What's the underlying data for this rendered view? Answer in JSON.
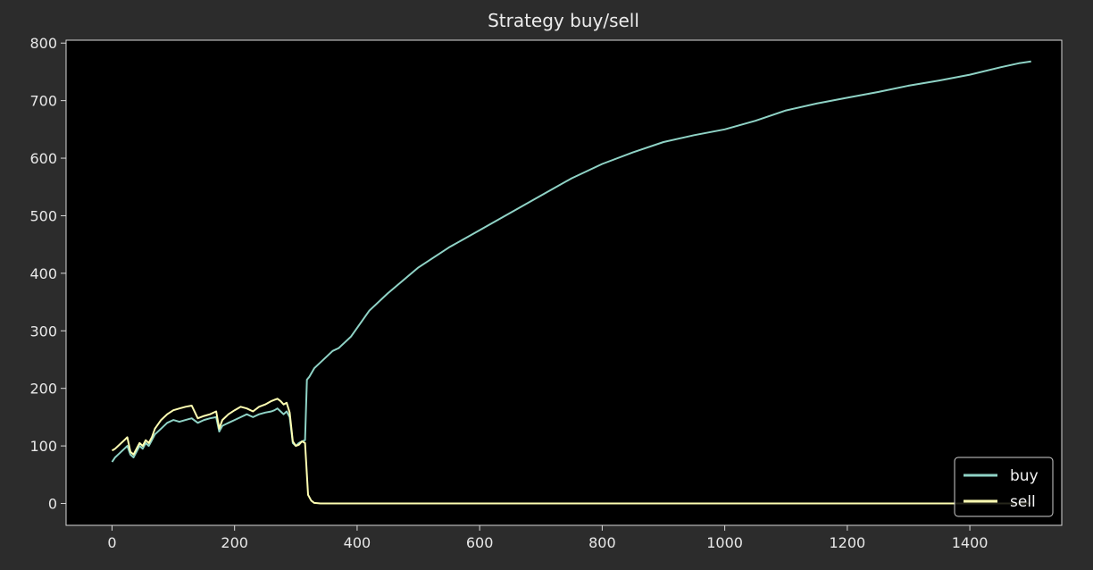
{
  "chart_data": {
    "type": "line",
    "title": "Strategy buy/sell",
    "xlabel": "",
    "ylabel": "",
    "xlim": [
      -75,
      1550
    ],
    "ylim": [
      -38,
      805
    ],
    "xticks": [
      0,
      200,
      400,
      600,
      800,
      1000,
      1200,
      1400
    ],
    "yticks": [
      0,
      100,
      200,
      300,
      400,
      500,
      600,
      700,
      800
    ],
    "grid": false,
    "legend_position": "lower right",
    "background": "#000000",
    "figure_background": "#2c2c2c",
    "series": [
      {
        "name": "buy",
        "color": "#8fd3c6",
        "x": [
          0,
          5,
          10,
          20,
          25,
          30,
          35,
          40,
          45,
          50,
          55,
          60,
          65,
          70,
          80,
          90,
          100,
          110,
          120,
          130,
          140,
          150,
          160,
          170,
          175,
          180,
          190,
          200,
          210,
          220,
          230,
          240,
          250,
          260,
          265,
          270,
          275,
          280,
          285,
          290,
          295,
          300,
          305,
          310,
          315,
          318,
          322,
          330,
          340,
          350,
          360,
          370,
          380,
          390,
          400,
          420,
          450,
          500,
          550,
          600,
          650,
          700,
          750,
          800,
          850,
          900,
          950,
          1000,
          1050,
          1100,
          1150,
          1200,
          1250,
          1300,
          1350,
          1400,
          1450,
          1480,
          1500
        ],
        "y": [
          72,
          80,
          85,
          95,
          100,
          85,
          80,
          90,
          100,
          95,
          105,
          100,
          110,
          120,
          130,
          140,
          145,
          142,
          145,
          148,
          140,
          145,
          148,
          150,
          125,
          135,
          140,
          145,
          150,
          155,
          150,
          155,
          158,
          160,
          162,
          165,
          160,
          155,
          160,
          150,
          105,
          100,
          105,
          108,
          110,
          215,
          220,
          235,
          245,
          255,
          265,
          270,
          280,
          290,
          305,
          335,
          365,
          410,
          445,
          475,
          505,
          535,
          565,
          590,
          610,
          628,
          640,
          650,
          665,
          683,
          695,
          705,
          715,
          726,
          735,
          745,
          758,
          765,
          768
        ]
      },
      {
        "name": "sell",
        "color": "#ffffb2",
        "x": [
          0,
          5,
          10,
          20,
          25,
          30,
          35,
          40,
          45,
          50,
          55,
          60,
          65,
          70,
          80,
          90,
          100,
          110,
          120,
          130,
          140,
          150,
          160,
          170,
          175,
          180,
          190,
          200,
          210,
          220,
          230,
          240,
          250,
          260,
          265,
          270,
          275,
          280,
          285,
          290,
          295,
          300,
          305,
          310,
          315,
          320,
          325,
          330,
          340,
          400,
          500,
          600,
          700,
          800,
          900,
          1000,
          1100,
          1200,
          1300,
          1400,
          1500
        ],
        "y": [
          92,
          95,
          100,
          110,
          115,
          90,
          85,
          95,
          105,
          100,
          110,
          105,
          115,
          130,
          145,
          155,
          162,
          165,
          168,
          170,
          148,
          152,
          155,
          160,
          130,
          145,
          155,
          162,
          168,
          165,
          160,
          168,
          172,
          178,
          180,
          182,
          178,
          172,
          175,
          158,
          108,
          100,
          102,
          108,
          105,
          15,
          5,
          1,
          0,
          0,
          0,
          0,
          0,
          0,
          0,
          0,
          0,
          0,
          0,
          0,
          0
        ]
      }
    ]
  }
}
